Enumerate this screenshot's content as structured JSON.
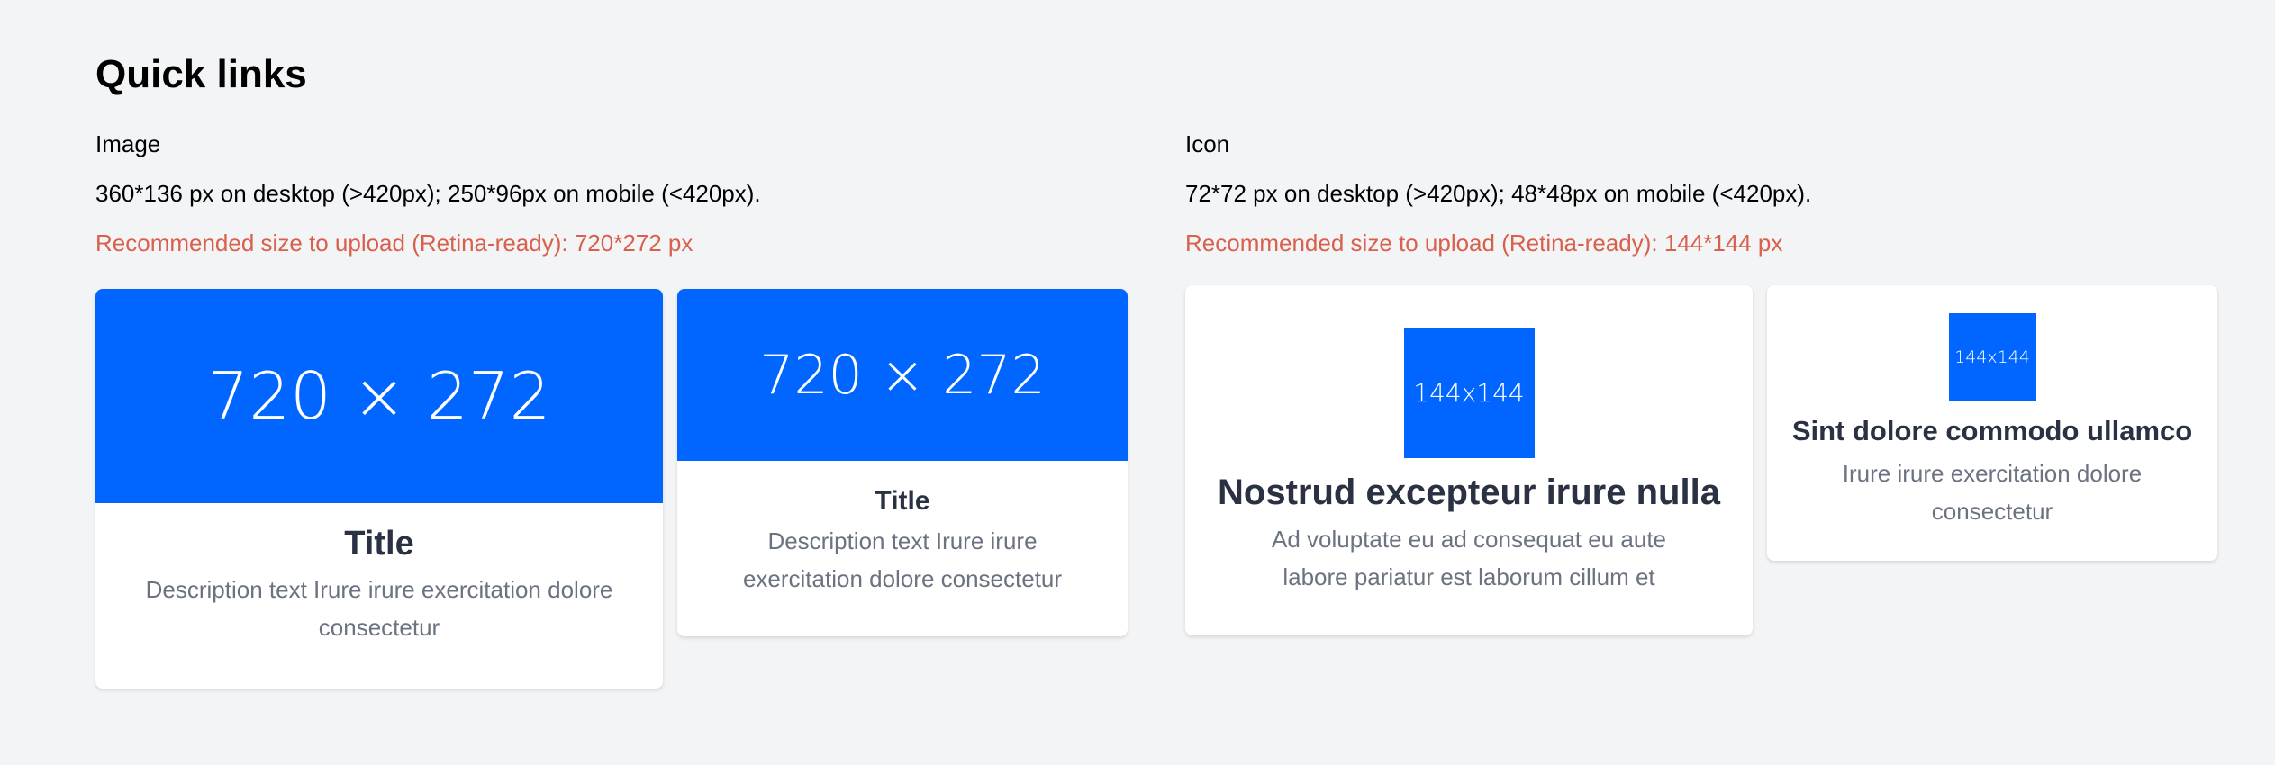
{
  "page": {
    "title": "Quick links"
  },
  "image_section": {
    "label": "Image",
    "spec": "360*136 px on desktop (>420px); 250*96px on mobile (<420px).",
    "recommendation": "Recommended size to upload (Retina-ready): 720*272 px",
    "cards": [
      {
        "placeholder": "720 × 272",
        "title": "Title",
        "description": "Description text Irure irure exercitation dolore consectetur"
      },
      {
        "placeholder": "720 × 272",
        "title": "Title",
        "description": "Description text Irure irure exercitation dolore consectetur"
      }
    ]
  },
  "icon_section": {
    "label": "Icon",
    "spec": "72*72 px on desktop (>420px); 48*48px on mobile (<420px).",
    "recommendation": "Recommended size to upload (Retina-ready): 144*144 px",
    "cards": [
      {
        "placeholder": "144x144",
        "title": "Nostrud excepteur irure nulla",
        "description": "Ad voluptate eu ad consequat eu aute labore pariatur est laborum cillum et"
      },
      {
        "placeholder": "144x144",
        "title": "Sint dolore commodo ullamco",
        "description": "Irure irure exercitation dolore consectetur"
      }
    ]
  },
  "colors": {
    "accent": "#0066ff",
    "warning_text": "#d9604c",
    "background": "#f3f4f6"
  }
}
